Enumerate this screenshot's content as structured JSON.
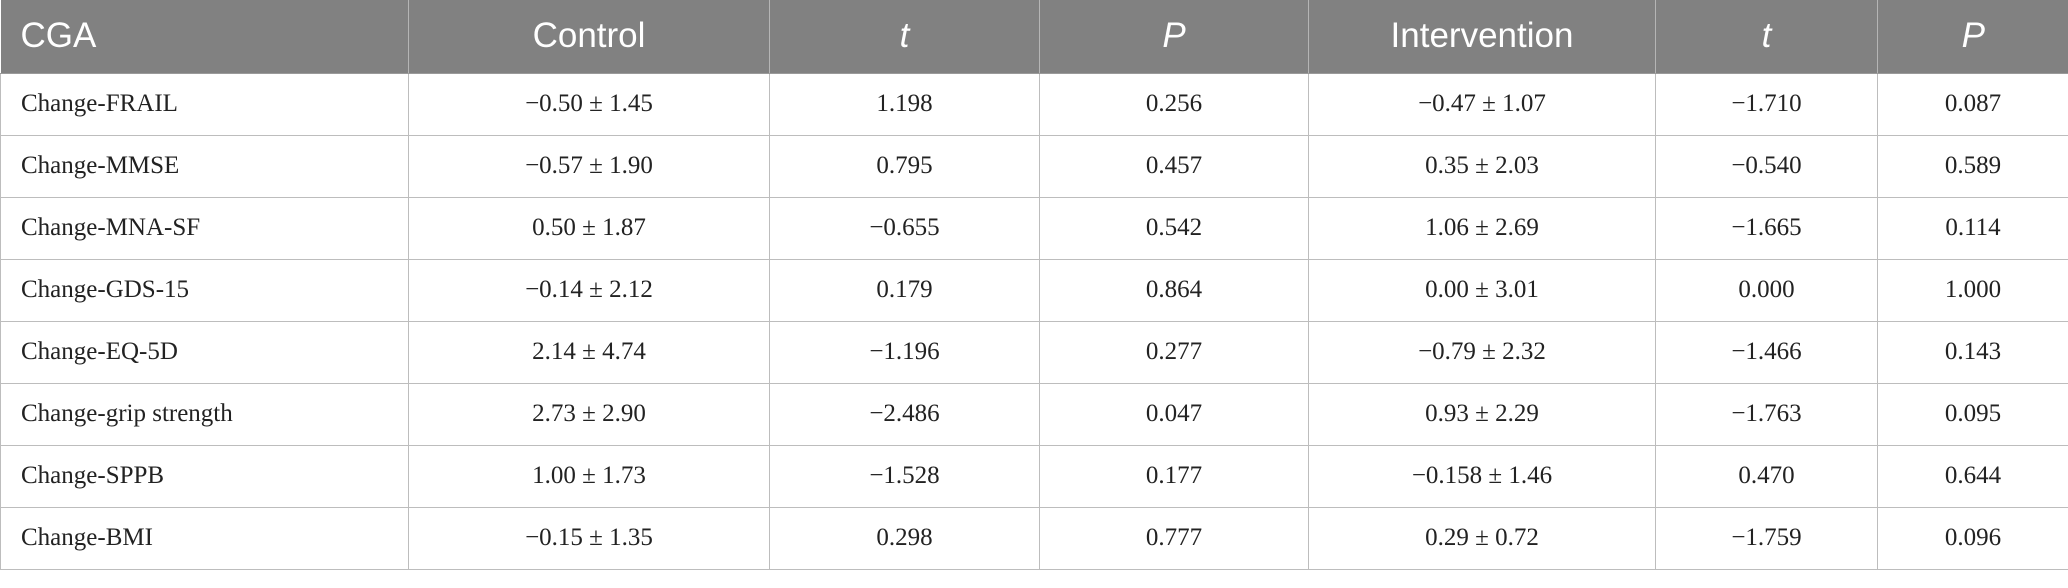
{
  "table": {
    "headers": [
      "CGA",
      "Control",
      "t",
      "P",
      "Intervention",
      "t",
      "P"
    ],
    "rows": [
      [
        "Change-FRAIL",
        "−0.50 ± 1.45",
        "1.198",
        "0.256",
        "−0.47 ± 1.07",
        "−1.710",
        "0.087"
      ],
      [
        "Change-MMSE",
        "−0.57 ± 1.90",
        "0.795",
        "0.457",
        "0.35 ± 2.03",
        "−0.540",
        "0.589"
      ],
      [
        "Change-MNA-SF",
        "0.50 ± 1.87",
        "−0.655",
        "0.542",
        "1.06 ± 2.69",
        "−1.665",
        "0.114"
      ],
      [
        "Change-GDS-15",
        "−0.14 ± 2.12",
        "0.179",
        "0.864",
        "0.00 ± 3.01",
        "0.000",
        "1.000"
      ],
      [
        "Change-EQ-5D",
        "2.14 ± 4.74",
        "−1.196",
        "0.277",
        "−0.79 ± 2.32",
        "−1.466",
        "0.143"
      ],
      [
        "Change-grip strength",
        "2.73 ± 2.90",
        "−2.486",
        "0.047",
        "0.93 ± 2.29",
        "−1.763",
        "0.095"
      ],
      [
        "Change-SPPB",
        "1.00 ± 1.73",
        "−1.528",
        "0.177",
        "−0.158 ± 1.46",
        "0.470",
        "0.644"
      ],
      [
        "Change-BMI",
        "−0.15 ± 1.35",
        "0.298",
        "0.777",
        "0.29 ± 0.72",
        "−1.759",
        "0.096"
      ]
    ]
  },
  "colors": {
    "header_bg": "#818181",
    "header_text": "#ffffff",
    "grid": "#bdbdbd"
  }
}
